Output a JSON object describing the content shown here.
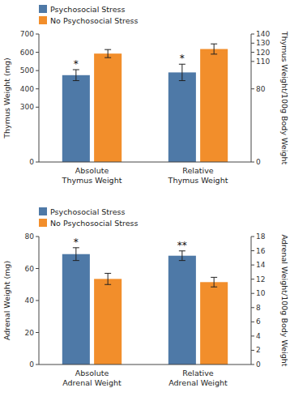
{
  "chart_data": [
    {
      "type": "bar",
      "categories": [
        "Absolute\nThymus Weight",
        "Relative\nThymus Weight"
      ],
      "series": [
        {
          "name": "Psychosocial Stress",
          "values": [
            475,
            490
          ],
          "errors": [
            30,
            45
          ]
        },
        {
          "name": "No Psychosocial Stress",
          "values": [
            593,
            618
          ],
          "errors": [
            22,
            28
          ]
        }
      ],
      "ylabel": "Thymus Weight (mg)",
      "ylim": [
        0,
        700
      ],
      "yticks": [
        0,
        300,
        400,
        500,
        600,
        700
      ],
      "y2label": "Thymus Weight/100g Body Weight",
      "y2lim": [
        0,
        140
      ],
      "y2ticks": [
        0,
        80,
        110,
        120,
        130,
        140
      ],
      "annotations": [
        {
          "text": "*",
          "category": "Absolute\nThymus Weight",
          "series": "Psychosocial Stress"
        },
        {
          "text": "*",
          "category": "Relative\nThymus Weight",
          "series": "Psychosocial Stress"
        }
      ],
      "legend": "upper left",
      "grid": false
    },
    {
      "type": "bar",
      "categories": [
        "Absolute\nAdrenal Weight",
        "Relative\nAdrenal Weight"
      ],
      "series": [
        {
          "name": "Psychosocial Stress",
          "values": [
            69,
            68
          ],
          "errors": [
            4,
            3
          ]
        },
        {
          "name": "No Psychosocial Stress",
          "values": [
            53.5,
            51.5
          ],
          "errors": [
            3.5,
            3
          ]
        }
      ],
      "ylabel": "Adrenal Weight (mg)",
      "ylim": [
        0,
        80
      ],
      "yticks": [
        0,
        20,
        40,
        60,
        80
      ],
      "y2label": "Adrenal Weight/100g Body Weight",
      "y2lim": [
        0,
        18
      ],
      "y2ticks": [
        0,
        2,
        4,
        6,
        8,
        10,
        12,
        14,
        16,
        18
      ],
      "annotations": [
        {
          "text": "*",
          "category": "Absolute\nAdrenal Weight",
          "series": "Psychosocial Stress"
        },
        {
          "text": "**",
          "category": "Relative\nAdrenal Weight",
          "series": "Psychosocial Stress"
        }
      ],
      "legend": "upper left",
      "grid": false
    }
  ]
}
